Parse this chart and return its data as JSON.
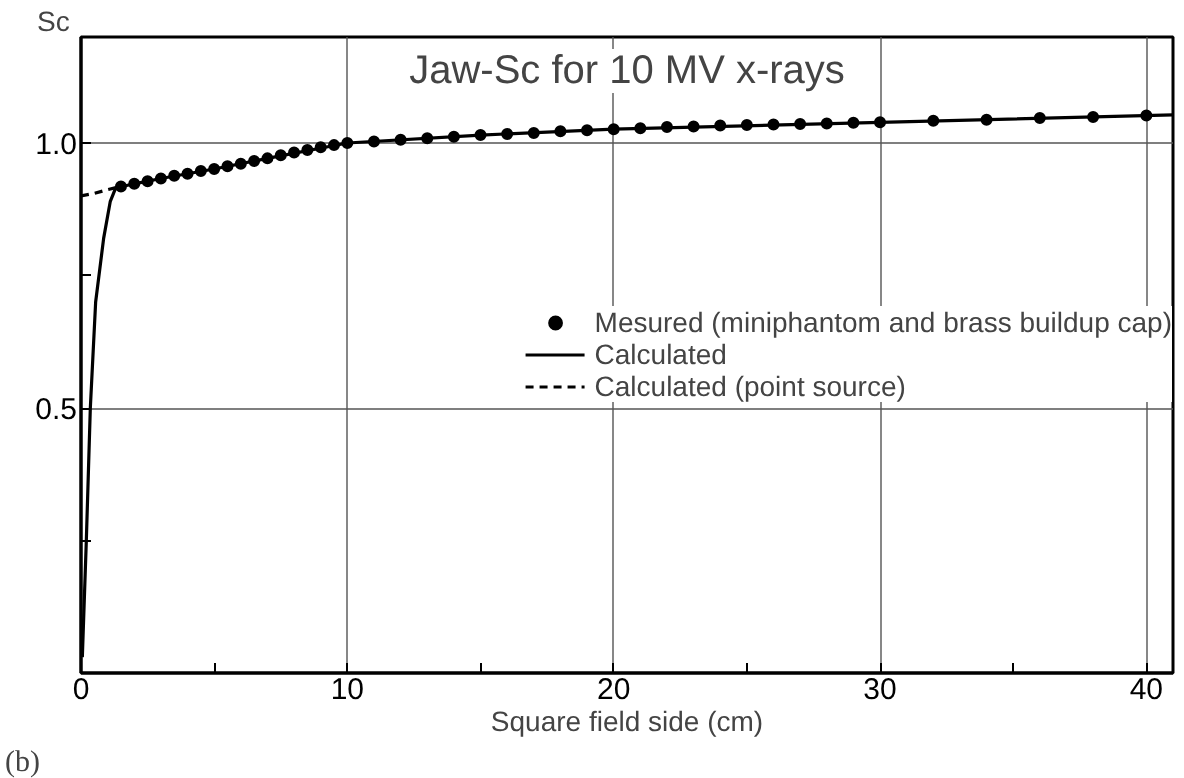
{
  "chart_data": {
    "type": "line",
    "title": "Jaw-Sc for 10 MV x-rays",
    "xlabel": "Square field side (cm)",
    "ylabel": "Sc",
    "annotations": [
      "(b)"
    ],
    "xlim": [
      0,
      41
    ],
    "ylim": [
      0,
      1.2
    ],
    "xticks": [
      0,
      {
        "value": 5,
        "label": null
      },
      10,
      {
        "value": 15,
        "label": null
      },
      20,
      {
        "value": 25,
        "label": null
      },
      30,
      {
        "value": 35,
        "label": null
      },
      40
    ],
    "yticks": [
      {
        "value": 0,
        "label": null
      },
      {
        "value": 0.25,
        "label": null
      },
      {
        "value": 0.5,
        "label": "0.5"
      },
      {
        "value": 0.75,
        "label": null
      },
      {
        "value": 1,
        "label": "1.0"
      }
    ],
    "grid": true,
    "legend": "right",
    "series": [
      {
        "name": "Mesured (miniphantom and brass buildup cap)",
        "type": "scatter",
        "marker": "circle",
        "color": "#000000",
        "x": [
          1.5,
          2,
          2.5,
          3,
          3.5,
          4,
          4.5,
          5,
          5.5,
          6,
          6.5,
          7,
          7.5,
          8,
          8.5,
          9,
          9.5,
          10,
          11,
          12,
          13,
          14,
          15,
          16,
          17,
          18,
          19,
          20,
          21,
          22,
          23,
          24,
          25,
          26,
          27,
          28,
          29,
          30,
          32,
          34,
          36,
          38,
          40
        ],
        "values": [
          0.918,
          0.923,
          0.928,
          0.933,
          0.938,
          0.942,
          0.947,
          0.951,
          0.956,
          0.961,
          0.966,
          0.971,
          0.977,
          0.982,
          0.987,
          0.992,
          0.996,
          1.0,
          1.003,
          1.006,
          1.009,
          1.012,
          1.015,
          1.017,
          1.019,
          1.022,
          1.024,
          1.026,
          1.028,
          1.03,
          1.031,
          1.033,
          1.034,
          1.035,
          1.036,
          1.037,
          1.038,
          1.039,
          1.042,
          1.044,
          1.047,
          1.049,
          1.052
        ]
      },
      {
        "name": "Calculated",
        "type": "line",
        "line_style": "solid",
        "color": "#000000",
        "x": [
          0.05,
          0.2,
          0.35,
          0.55,
          0.85,
          1.1,
          1.3,
          2,
          3,
          5,
          7,
          10,
          15,
          20,
          30,
          41
        ],
        "values": [
          0.03,
          0.25,
          0.5,
          0.7,
          0.82,
          0.89,
          0.915,
          0.923,
          0.933,
          0.951,
          0.971,
          1.0,
          1.015,
          1.026,
          1.039,
          1.053
        ]
      },
      {
        "name": "Calculated (point source)",
        "type": "line",
        "line_style": "dashed",
        "color": "#000000",
        "x": [
          0,
          0.5,
          1,
          1.5
        ],
        "values": [
          0.9,
          0.905,
          0.912,
          0.918
        ]
      }
    ]
  }
}
